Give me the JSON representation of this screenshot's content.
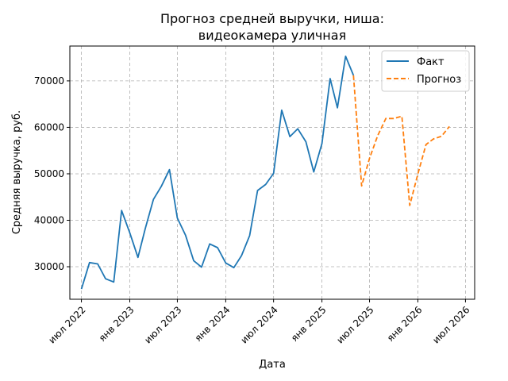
{
  "chart_data": {
    "type": "line",
    "title_lines": [
      "Прогноз средней выручки, ниша:",
      "видеокамера уличная"
    ],
    "xlabel": "Дата",
    "ylabel": "Средняя выручка, руб.",
    "ylim": [
      23000,
      77500
    ],
    "yticks": [
      30000,
      40000,
      50000,
      60000,
      70000
    ],
    "xlim": [
      "2022-05-18",
      "2026-08-05"
    ],
    "xticks": [
      {
        "date": "2022-07-01",
        "label": "июл 2022"
      },
      {
        "date": "2023-01-01",
        "label": "янв 2023"
      },
      {
        "date": "2023-07-01",
        "label": "июл 2023"
      },
      {
        "date": "2024-01-01",
        "label": "янв 2024"
      },
      {
        "date": "2024-07-01",
        "label": "июл 2024"
      },
      {
        "date": "2025-01-01",
        "label": "янв 2025"
      },
      {
        "date": "2025-07-01",
        "label": "июл 2025"
      },
      {
        "date": "2026-01-01",
        "label": "янв 2026"
      },
      {
        "date": "2026-07-01",
        "label": "июл 2026"
      }
    ],
    "grid": true,
    "legend_position": "top-right",
    "series": [
      {
        "name": "Факт",
        "color": "#1f77b4",
        "style": "solid",
        "points": [
          [
            "2022-07-01",
            25200
          ],
          [
            "2022-08-01",
            30900
          ],
          [
            "2022-09-01",
            30600
          ],
          [
            "2022-10-01",
            27400
          ],
          [
            "2022-11-01",
            26700
          ],
          [
            "2022-12-01",
            42100
          ],
          [
            "2023-01-01",
            37300
          ],
          [
            "2023-02-01",
            32000
          ],
          [
            "2023-03-01",
            38200
          ],
          [
            "2023-04-01",
            44500
          ],
          [
            "2023-05-01",
            47300
          ],
          [
            "2023-06-01",
            50900
          ],
          [
            "2023-07-01",
            40500
          ],
          [
            "2023-08-01",
            36800
          ],
          [
            "2023-09-01",
            31300
          ],
          [
            "2023-10-01",
            29900
          ],
          [
            "2023-11-01",
            34900
          ],
          [
            "2023-12-01",
            34100
          ],
          [
            "2024-01-01",
            30800
          ],
          [
            "2024-02-01",
            29800
          ],
          [
            "2024-03-01",
            32400
          ],
          [
            "2024-04-01",
            36700
          ],
          [
            "2024-05-01",
            46400
          ],
          [
            "2024-06-01",
            47700
          ],
          [
            "2024-07-01",
            50100
          ],
          [
            "2024-08-01",
            63700
          ],
          [
            "2024-09-01",
            58000
          ],
          [
            "2024-10-01",
            59700
          ],
          [
            "2024-11-01",
            56900
          ],
          [
            "2024-12-01",
            50400
          ],
          [
            "2025-01-01",
            56500
          ],
          [
            "2025-02-01",
            70500
          ],
          [
            "2025-03-01",
            64200
          ],
          [
            "2025-04-01",
            75300
          ],
          [
            "2025-05-01",
            71200
          ]
        ]
      },
      {
        "name": "Прогноз",
        "color": "#ff7f0e",
        "style": "dashed",
        "points": [
          [
            "2025-05-01",
            71200
          ],
          [
            "2025-06-01",
            47400
          ],
          [
            "2025-07-01",
            53300
          ],
          [
            "2025-08-01",
            58200
          ],
          [
            "2025-09-01",
            61900
          ],
          [
            "2025-10-01",
            61900
          ],
          [
            "2025-11-01",
            62400
          ],
          [
            "2025-12-01",
            43200
          ],
          [
            "2026-01-01",
            50000
          ],
          [
            "2026-02-01",
            56300
          ],
          [
            "2026-03-01",
            57500
          ],
          [
            "2026-04-01",
            58100
          ],
          [
            "2026-05-01",
            60200
          ]
        ]
      }
    ]
  }
}
